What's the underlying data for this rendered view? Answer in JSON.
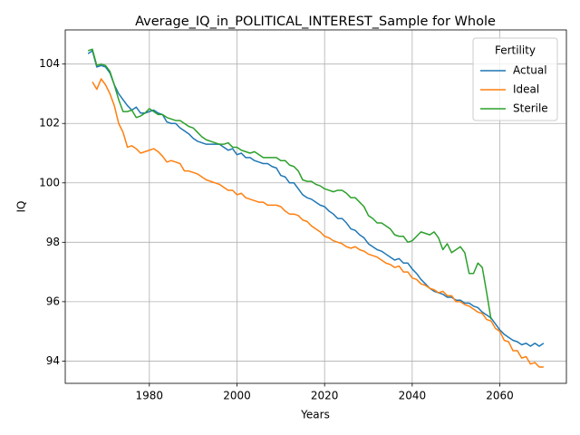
{
  "chart_data": {
    "type": "line",
    "title": "Average_IQ_in_POLITICAL_INTEREST_Sample for Whole",
    "x_label": "Years",
    "y_label": "IQ",
    "x": [
      1966,
      1967,
      1968,
      1969,
      1970,
      1971,
      1972,
      1973,
      1974,
      1975,
      1976,
      1977,
      1978,
      1979,
      1980,
      1981,
      1982,
      1983,
      1984,
      1985,
      1986,
      1987,
      1988,
      1989,
      1990,
      1991,
      1992,
      1993,
      1994,
      1995,
      1996,
      1997,
      1998,
      1999,
      2000,
      2001,
      2002,
      2003,
      2004,
      2005,
      2006,
      2007,
      2008,
      2009,
      2010,
      2011,
      2012,
      2013,
      2014,
      2015,
      2016,
      2017,
      2018,
      2019,
      2020,
      2021,
      2022,
      2023,
      2024,
      2025,
      2026,
      2027,
      2028,
      2029,
      2030,
      2031,
      2032,
      2033,
      2034,
      2035,
      2036,
      2037,
      2038,
      2039,
      2040,
      2041,
      2042,
      2043,
      2044,
      2045,
      2046,
      2047,
      2048,
      2049,
      2050,
      2051,
      2052,
      2053,
      2054,
      2055,
      2056,
      2057,
      2058,
      2059,
      2060,
      2061,
      2062,
      2063,
      2064,
      2065,
      2066,
      2067,
      2068,
      2069,
      2070
    ],
    "series": [
      {
        "name": "Actual",
        "color": "#1f77b4",
        "values": [
          104.35,
          104.45,
          103.9,
          103.95,
          103.9,
          103.7,
          103.3,
          103.0,
          102.8,
          102.6,
          102.45,
          102.55,
          102.35,
          102.35,
          102.4,
          102.45,
          102.35,
          102.3,
          102.05,
          102.0,
          102.0,
          101.85,
          101.75,
          101.65,
          101.5,
          101.4,
          101.35,
          101.3,
          101.3,
          101.3,
          101.3,
          101.2,
          101.1,
          101.15,
          100.95,
          101.0,
          100.85,
          100.85,
          100.75,
          100.7,
          100.65,
          100.65,
          100.55,
          100.5,
          100.25,
          100.2,
          100.0,
          100.0,
          99.8,
          99.6,
          99.5,
          99.45,
          99.35,
          99.25,
          99.2,
          99.05,
          98.95,
          98.8,
          98.8,
          98.65,
          98.45,
          98.4,
          98.25,
          98.15,
          97.95,
          97.85,
          97.75,
          97.7,
          97.6,
          97.5,
          97.4,
          97.45,
          97.3,
          97.3,
          97.1,
          96.95,
          96.75,
          96.6,
          96.45,
          96.35,
          96.3,
          96.25,
          96.15,
          96.15,
          96.05,
          96.05,
          95.95,
          95.95,
          95.85,
          95.8,
          95.65,
          95.55,
          95.45,
          95.25,
          95.05,
          94.9,
          94.8,
          94.7,
          94.65,
          94.55,
          94.6,
          94.5,
          94.6,
          94.5,
          94.6
        ]
      },
      {
        "name": "Ideal",
        "color": "#ff7f0e",
        "values": [
          null,
          103.4,
          103.15,
          103.5,
          103.3,
          103.0,
          102.6,
          102.0,
          101.7,
          101.2,
          101.25,
          101.15,
          101.0,
          101.05,
          101.1,
          101.15,
          101.05,
          100.9,
          100.7,
          100.75,
          100.7,
          100.65,
          100.4,
          100.4,
          100.35,
          100.3,
          100.2,
          100.1,
          100.05,
          100.0,
          99.95,
          99.85,
          99.75,
          99.75,
          99.6,
          99.65,
          99.5,
          99.45,
          99.4,
          99.35,
          99.35,
          99.25,
          99.25,
          99.25,
          99.2,
          99.05,
          98.95,
          98.95,
          98.9,
          98.75,
          98.7,
          98.55,
          98.45,
          98.35,
          98.2,
          98.15,
          98.05,
          98.0,
          97.95,
          97.85,
          97.8,
          97.85,
          97.75,
          97.7,
          97.6,
          97.55,
          97.5,
          97.4,
          97.3,
          97.25,
          97.15,
          97.2,
          97.0,
          97.0,
          96.8,
          96.75,
          96.6,
          96.55,
          96.45,
          96.4,
          96.3,
          96.35,
          96.2,
          96.2,
          96.0,
          96.0,
          95.9,
          95.85,
          95.75,
          95.65,
          95.6,
          95.4,
          95.35,
          95.1,
          95.0,
          94.7,
          94.65,
          94.35,
          94.35,
          94.1,
          94.15,
          93.9,
          93.95,
          93.8,
          93.8
        ]
      },
      {
        "name": "Sterile",
        "color": "#2ca02c",
        "values": [
          104.45,
          104.5,
          103.95,
          104.0,
          103.95,
          103.75,
          103.3,
          102.8,
          102.4,
          102.4,
          102.45,
          102.2,
          102.25,
          102.35,
          102.5,
          102.4,
          102.3,
          102.3,
          102.2,
          102.15,
          102.1,
          102.1,
          102.0,
          101.9,
          101.85,
          101.7,
          101.55,
          101.45,
          101.4,
          101.35,
          101.3,
          101.3,
          101.35,
          101.2,
          101.2,
          101.1,
          101.05,
          101.0,
          101.05,
          100.95,
          100.85,
          100.85,
          100.85,
          100.85,
          100.75,
          100.75,
          100.6,
          100.55,
          100.4,
          100.1,
          100.05,
          100.05,
          99.95,
          99.9,
          99.8,
          99.75,
          99.7,
          99.75,
          99.75,
          99.65,
          99.5,
          99.5,
          99.35,
          99.2,
          98.9,
          98.8,
          98.65,
          98.65,
          98.55,
          98.45,
          98.25,
          98.2,
          98.2,
          98.0,
          98.05,
          98.2,
          98.35,
          98.3,
          98.25,
          98.35,
          98.15,
          97.75,
          97.95,
          97.65,
          97.75,
          97.85,
          97.65,
          96.95,
          96.95,
          97.3,
          97.15,
          96.3,
          95.4,
          null,
          null,
          null,
          null,
          null,
          null,
          null,
          null,
          null,
          null,
          null,
          null
        ]
      }
    ],
    "xlim": [
      1960.8,
      2075.2
    ],
    "xticks": [
      1980,
      2000,
      2020,
      2040,
      2060
    ],
    "ylim": [
      93.25,
      105.15
    ],
    "yticks": [
      94,
      96,
      98,
      100,
      102,
      104
    ],
    "grid": true,
    "legend_title": "Fertility",
    "legend_position": "upper right"
  }
}
